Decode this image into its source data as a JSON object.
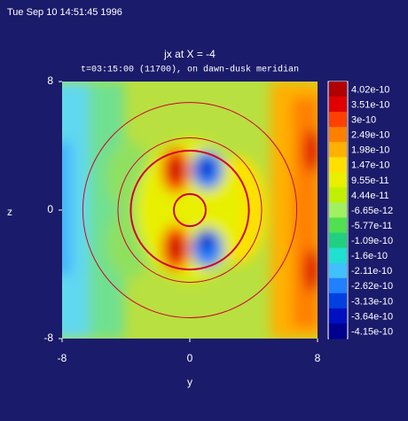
{
  "chart_data": {
    "type": "contour",
    "timestamp": "Tue Sep 10 14:51:45 1996",
    "title": "jx at X = -4",
    "subtitle": "t=03:15:00 (11700), on dawn-dusk meridian",
    "x_label": "y",
    "y_label": "z",
    "xlim": [
      -8,
      8
    ],
    "ylim": [
      -8,
      8
    ],
    "xticks": [
      -8,
      0,
      8
    ],
    "yticks": [
      -8,
      0,
      8
    ],
    "circle_radii": [
      1,
      3.7,
      4.5,
      6.7
    ],
    "circle_color": "#d00030",
    "colorbar": {
      "levels": [
        4.02e-10,
        3.51e-10,
        3e-10,
        2.49e-10,
        1.98e-10,
        1.47e-10,
        9.55e-11,
        4.44e-11,
        -6.65e-12,
        -5.77e-11,
        -1.09e-10,
        -1.6e-10,
        -2.11e-10,
        -2.62e-10,
        -3.13e-10,
        -3.64e-10,
        -4.15e-10
      ],
      "colors": [
        "#b00000",
        "#e00000",
        "#ff4000",
        "#ff8000",
        "#ffb000",
        "#ffe000",
        "#e8f000",
        "#c0f000",
        "#a0f060",
        "#50e050",
        "#20d080",
        "#20e0d0",
        "#40c0ff",
        "#2080ff",
        "#0040e0",
        "#0010c0",
        "#000090"
      ]
    }
  }
}
